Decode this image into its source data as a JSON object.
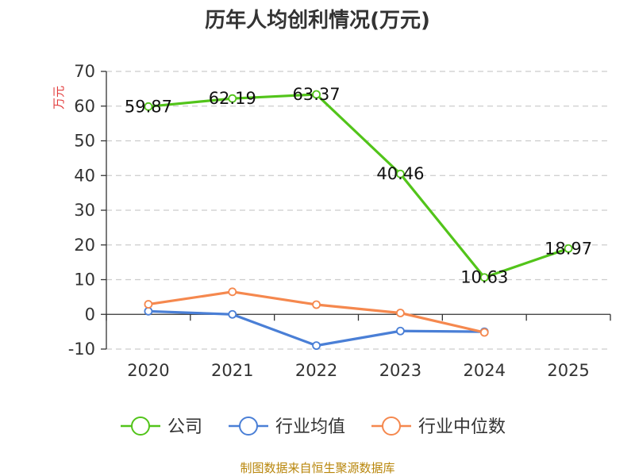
{
  "chart_data": {
    "type": "line",
    "title": "历年人均创利情况(万元)",
    "ylabel": "万元",
    "xlabel": "",
    "ylim": [
      -10,
      70
    ],
    "yticks": [
      -10,
      0,
      10,
      20,
      30,
      40,
      50,
      60,
      70
    ],
    "categories": [
      "2020",
      "2021",
      "2022",
      "2023",
      "2024",
      "2025"
    ],
    "grid": true,
    "legend_position": "bottom",
    "series": [
      {
        "name": "公司",
        "color": "#52c41a",
        "values": [
          59.87,
          62.19,
          63.37,
          40.46,
          10.63,
          18.97
        ],
        "labels": [
          "59.87",
          "62.19",
          "63.37",
          "40.46",
          "10.63",
          "18.97"
        ]
      },
      {
        "name": "行业均值",
        "color": "#4a7fd6",
        "values": [
          0.9,
          0.0,
          -9.0,
          -4.8,
          -5.0,
          null
        ]
      },
      {
        "name": "行业中位数",
        "color": "#f5884e",
        "values": [
          2.9,
          6.5,
          2.8,
          0.4,
          -5.2,
          null
        ]
      }
    ]
  },
  "source": "制图数据来自恒生聚源数据库"
}
